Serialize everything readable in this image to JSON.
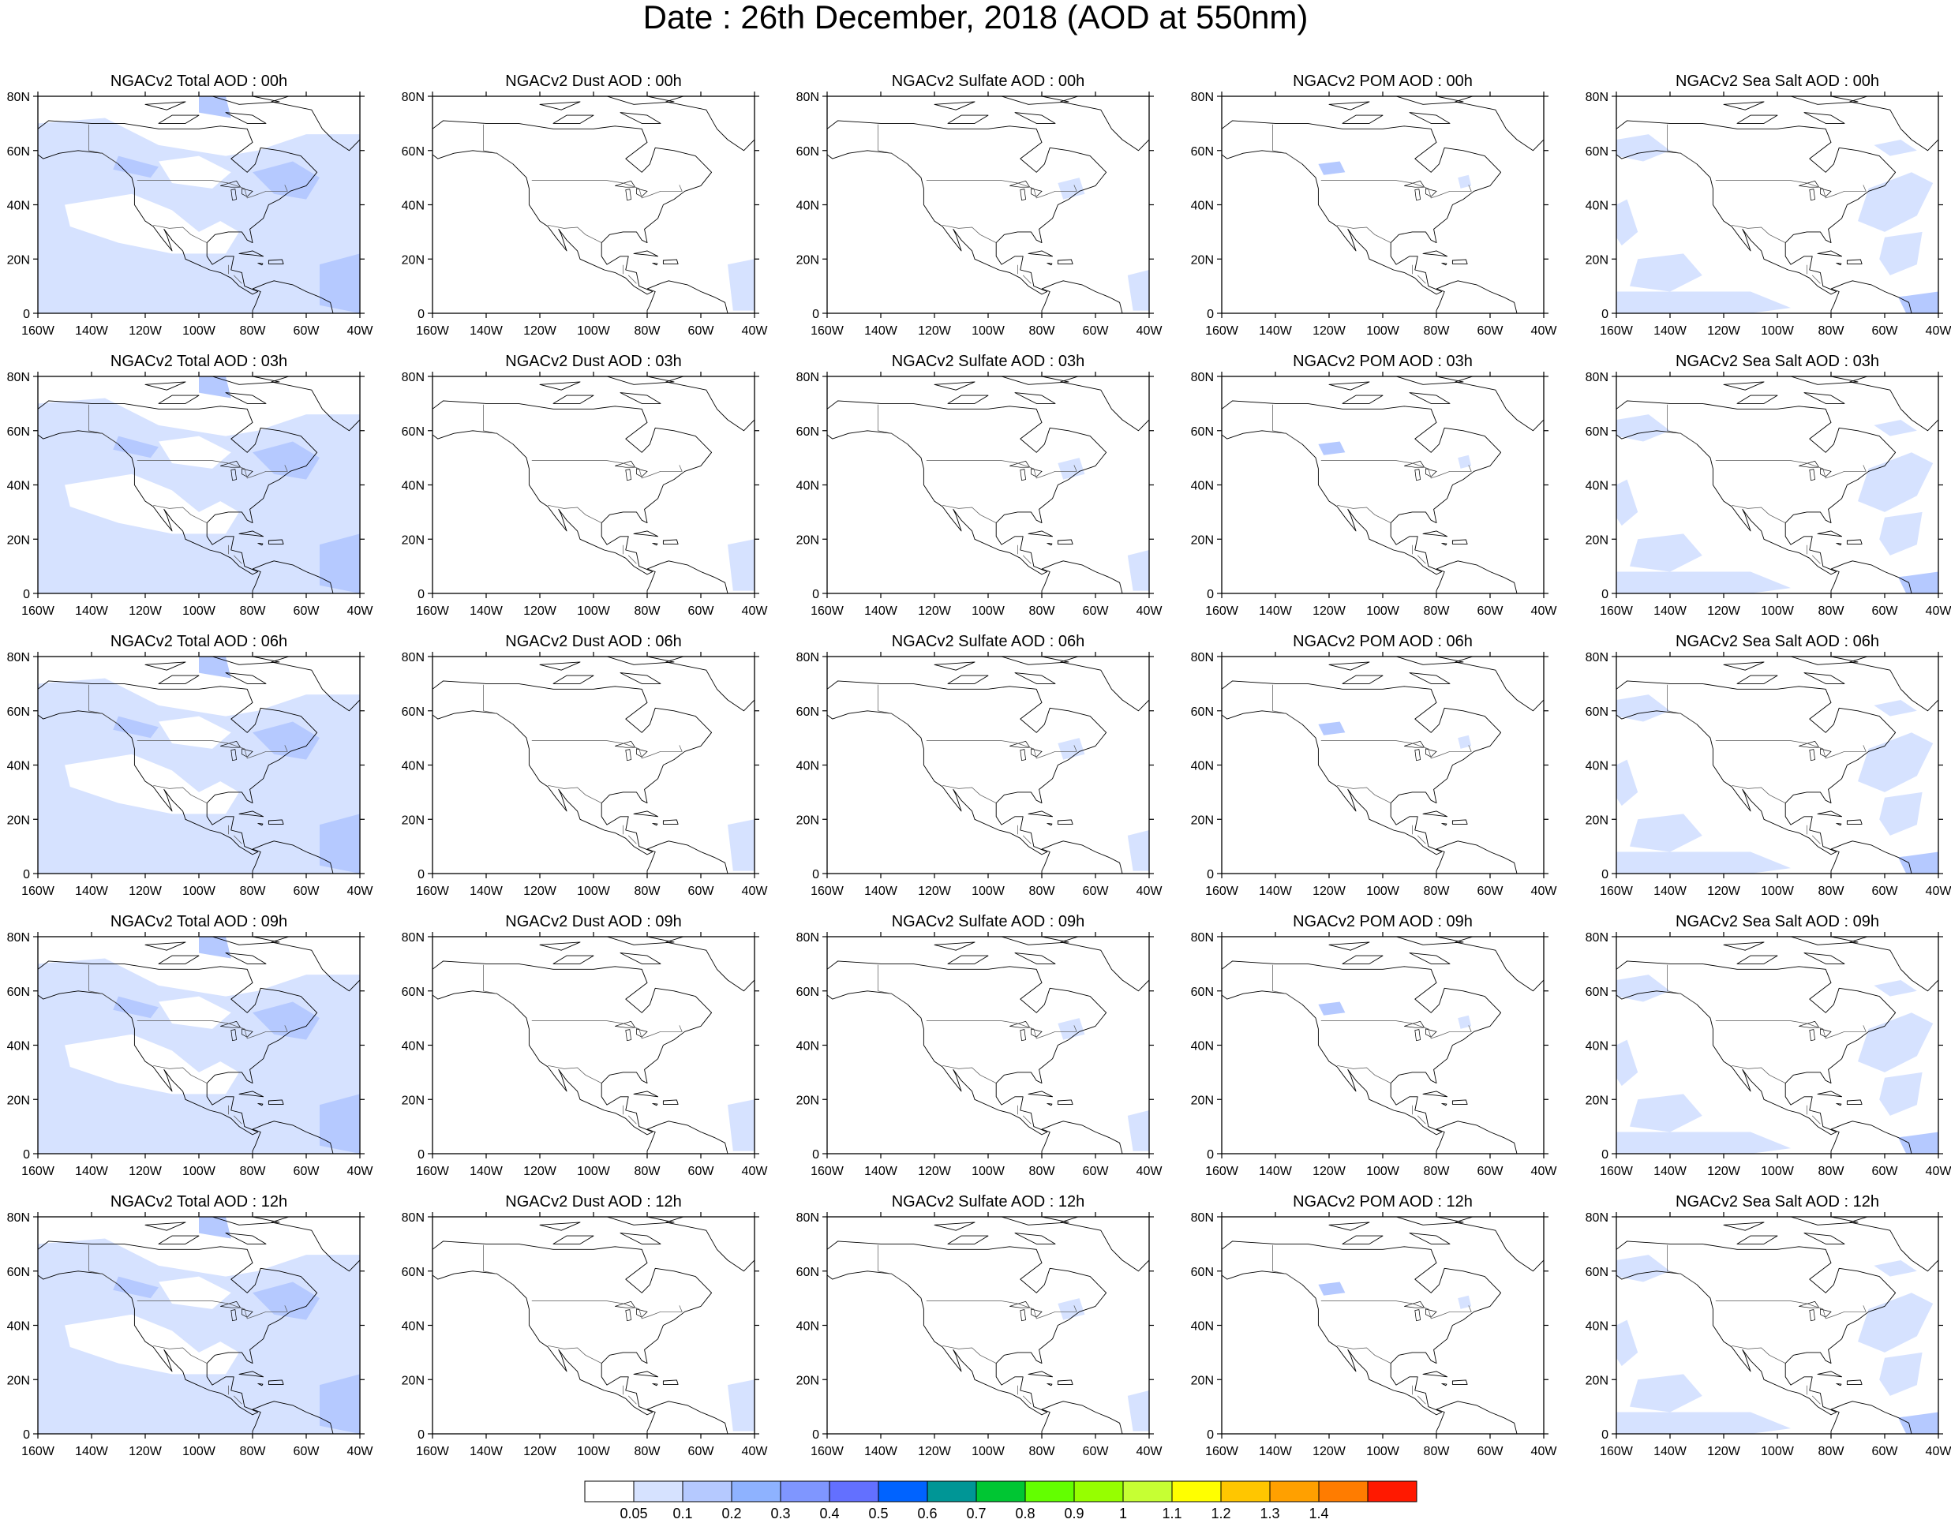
{
  "title": "Date : 26th December, 2018 (AOD at 550nm)",
  "axes": {
    "lat_ticks": [
      "80N",
      "60N",
      "40N",
      "20N",
      "0"
    ],
    "lon_ticks": [
      "160W",
      "140W",
      "120W",
      "100W",
      "80W",
      "60W",
      "40W"
    ],
    "lon_range": [
      -160,
      -40
    ],
    "lat_range": [
      0,
      80
    ]
  },
  "species": [
    "total",
    "dust",
    "sulfate",
    "pom",
    "seasalt"
  ],
  "times": [
    "00h",
    "03h",
    "06h",
    "09h",
    "12h"
  ],
  "panels": [
    [
      "NGACv2 Total AOD : 00h",
      "NGACv2 Dust AOD : 00h",
      "NGACv2 Sulfate AOD : 00h",
      "NGACv2 POM AOD : 00h",
      "NGACv2 Sea Salt AOD : 00h"
    ],
    [
      "NGACv2 Total AOD : 03h",
      "NGACv2 Dust AOD : 03h",
      "NGACv2 Sulfate AOD : 03h",
      "NGACv2 POM AOD : 03h",
      "NGACv2 Sea Salt AOD : 03h"
    ],
    [
      "NGACv2 Total AOD : 06h",
      "NGACv2 Dust AOD : 06h",
      "NGACv2 Sulfate AOD : 06h",
      "NGACv2 POM AOD : 06h",
      "NGACv2 Sea Salt AOD : 06h"
    ],
    [
      "NGACv2 Total AOD : 09h",
      "NGACv2 Dust AOD : 09h",
      "NGACv2 Sulfate AOD : 09h",
      "NGACv2 POM AOD : 09h",
      "NGACv2 Sea Salt  AOD : 09h"
    ],
    [
      "NGACv2 Total AOD  : 12h",
      "NGACv2 Dust AOD : 12h",
      "NGACv2 Sulfate AOD : 12h",
      "NGACv2 POM  AOD : 12h",
      "NGACv2 Sea Salt  AOD : 12h"
    ]
  ],
  "colorbar": {
    "labels": [
      "0.05",
      "0.1",
      "0.2",
      "0.3",
      "0.4",
      "0.5",
      "0.6",
      "0.7",
      "0.8",
      "0.9",
      "1",
      "1.1",
      "1.2",
      "1.3",
      "1.4"
    ],
    "colors": [
      "#ffffff",
      "#d6e2ff",
      "#b5c9ff",
      "#8eb2ff",
      "#7f96ff",
      "#6370ff",
      "#0063ff",
      "#009696",
      "#00c633",
      "#63ff00",
      "#96ff00",
      "#c6ff33",
      "#ffff00",
      "#ffc600",
      "#ffa000",
      "#ff7c00",
      "#ff1900"
    ]
  },
  "aod_colors": {
    "light": "#d6e2ff",
    "medium": "#b5c9ff"
  }
}
